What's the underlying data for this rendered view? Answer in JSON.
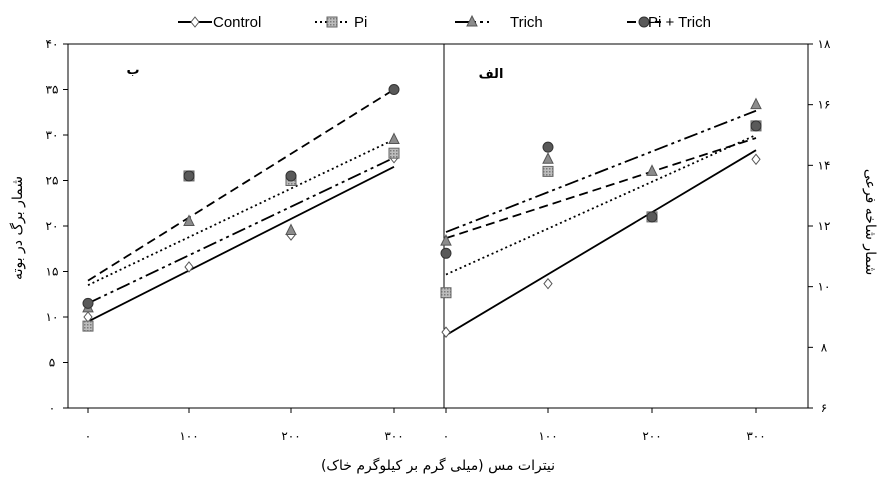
{
  "chart_data": {
    "type": "scatter",
    "x_axis_title": "نیترات مس (میلی گرم بر کیلوگرم خاک)",
    "x_ticks": [
      "۰",
      "۱۰۰",
      "۲۰۰",
      "۳۰۰"
    ],
    "x_values": [
      0,
      100,
      200,
      300
    ],
    "legend": [
      {
        "key": "control",
        "name": "Control"
      },
      {
        "key": "pi",
        "name": "Pi"
      },
      {
        "key": "trich",
        "name": "Trich"
      },
      {
        "key": "pitrich",
        "name": "Pi + Trich"
      }
    ],
    "legend_position": "top",
    "colors": {
      "control": "#ffffff",
      "pi": "#bdbdbd",
      "trich": "#8c8c8c",
      "pitrich": "#595959",
      "line": "#000000"
    },
    "panels": [
      {
        "id": "left",
        "label": "ب",
        "ylabel": "شمار برگ در بوته",
        "y_side": "left",
        "ylim": [
          0,
          40
        ],
        "y_ticks": [
          "۰",
          "۵",
          "۱۰",
          "۱۵",
          "۲۰",
          "۲۵",
          "۳۰",
          "۳۵",
          "۴۰"
        ],
        "y_tick_values": [
          0,
          5,
          10,
          15,
          20,
          25,
          30,
          35,
          40
        ],
        "series": {
          "control": {
            "values": [
              10,
              15.5,
              19,
              27.5
            ],
            "trend": [
              9.5,
              26.5
            ]
          },
          "pi": {
            "values": [
              9,
              25.5,
              25,
              28
            ],
            "trend": [
              13.5,
              29.5
            ]
          },
          "trich": {
            "values": [
              11,
              20.5,
              19.5,
              29.5
            ],
            "trend": [
              11.5,
              27.5
            ]
          },
          "pitrich": {
            "values": [
              11.5,
              25.5,
              25.5,
              35
            ],
            "trend": [
              14,
              35
            ]
          }
        }
      },
      {
        "id": "right",
        "label": "الف",
        "ylabel": "شمار شاخه فرعی",
        "y_side": "right",
        "ylim": [
          6,
          18
        ],
        "y_ticks": [
          "۶",
          "۸",
          "۱۰",
          "۱۲",
          "۱۴",
          "۱۶",
          "۱۸"
        ],
        "y_tick_values": [
          6,
          8,
          10,
          12,
          14,
          16,
          18
        ],
        "series": {
          "control": {
            "values": [
              8.5,
              10.1,
              12.3,
              14.2
            ],
            "trend": [
              8.4,
              14.5
            ]
          },
          "pi": {
            "values": [
              9.8,
              13.8,
              12.3,
              15.3
            ],
            "trend": [
              10.4,
              15
            ]
          },
          "trich": {
            "values": [
              11.5,
              14.2,
              13.8,
              16
            ],
            "trend": [
              11.8,
              15.8
            ]
          },
          "pitrich": {
            "values": [
              11.1,
              14.6,
              12.3,
              15.3
            ],
            "trend": [
              11.6,
              14.9
            ]
          }
        }
      }
    ]
  }
}
